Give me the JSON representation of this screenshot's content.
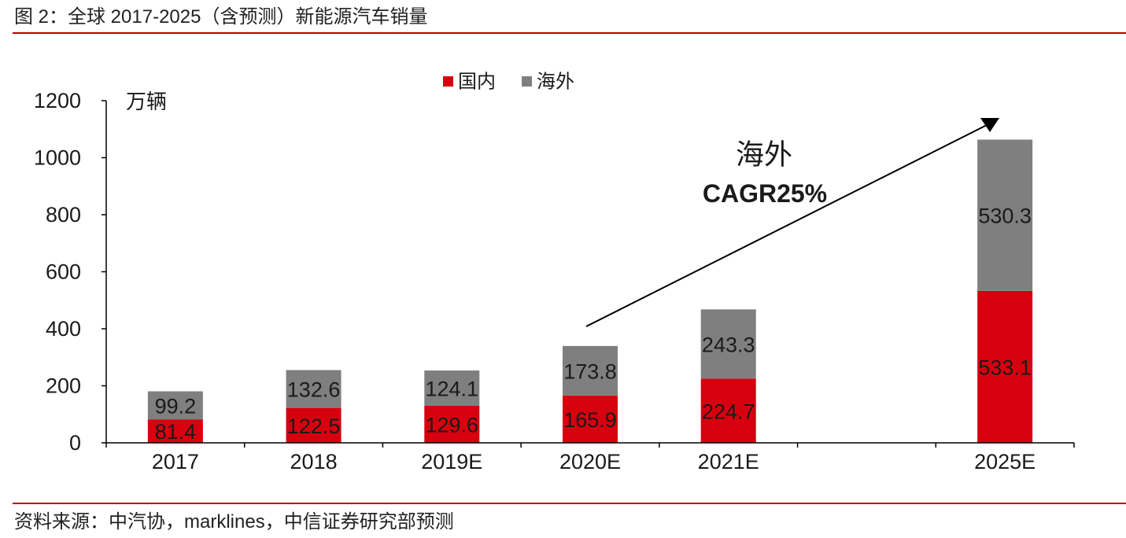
{
  "header": {
    "title": "图 2：全球 2017-2025（含预测）新能源汽车销量"
  },
  "footer": {
    "source": "资料来源：中汽协，marklines，中信证券研究部预测"
  },
  "colors": {
    "rule": "#c00000",
    "axis": "#000000"
  },
  "chart_data": {
    "type": "bar",
    "stacked": true,
    "categories": [
      "2017",
      "2018",
      "2019E",
      "2020E",
      "2021E",
      "2025E"
    ],
    "series": [
      {
        "name": "国内",
        "values": [
          81.4,
          122.5,
          129.6,
          165.9,
          224.7,
          533.1
        ],
        "color": "#d7000f"
      },
      {
        "name": "海外",
        "values": [
          99.2,
          132.6,
          124.1,
          173.8,
          243.3,
          530.3
        ],
        "color": "#7f7f7f"
      }
    ],
    "ylabel": "万辆",
    "ylim": [
      0,
      1200
    ],
    "yticks": [
      0,
      200,
      400,
      600,
      800,
      1000,
      1200
    ],
    "legend": "top-center",
    "grid": false,
    "annotation": {
      "label": "海外",
      "value": "CAGR25%"
    }
  }
}
